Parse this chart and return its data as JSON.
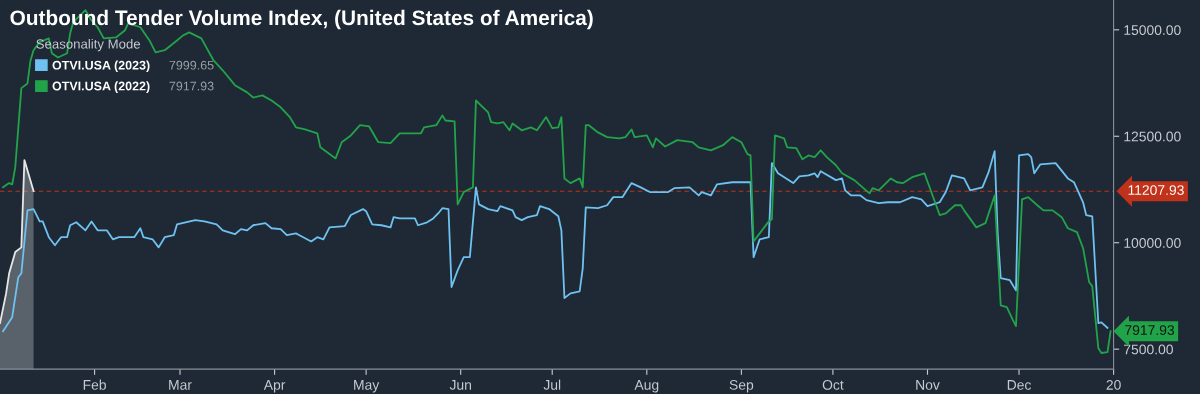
{
  "chart_data": {
    "type": "line",
    "title": "Outbound Tender Volume Index, (United States of America)",
    "legend_title": "Seasonality Mode",
    "legend": "top left",
    "grid": false,
    "xlim": [
      "2023-01-01",
      "2024-01-01"
    ],
    "xticks": [
      {
        "value": "2023-02-01",
        "label": "Feb"
      },
      {
        "value": "2023-03-01",
        "label": "Mar"
      },
      {
        "value": "2023-04-01",
        "label": "Apr"
      },
      {
        "value": "2023-05-01",
        "label": "May"
      },
      {
        "value": "2023-06-01",
        "label": "Jun"
      },
      {
        "value": "2023-07-01",
        "label": "Jul"
      },
      {
        "value": "2023-08-01",
        "label": "Aug"
      },
      {
        "value": "2023-09-01",
        "label": "Sep"
      },
      {
        "value": "2023-10-01",
        "label": "Oct"
      },
      {
        "value": "2023-11-01",
        "label": "Nov"
      },
      {
        "value": "2023-12-01",
        "label": "Dec"
      },
      {
        "value": "2024-01-01",
        "label": "20"
      }
    ],
    "ylim": [
      7030,
      15700
    ],
    "yticks": [
      {
        "value": 7500,
        "label": "7500.00"
      },
      {
        "value": 10000,
        "label": "10000.00"
      },
      {
        "value": 12500,
        "label": "12500.00"
      },
      {
        "value": 15000,
        "label": "15000.00"
      }
    ],
    "series": [
      {
        "name": "OTVI.USA (2023)",
        "color": "#6ec1f0",
        "x": [
          "2023-01-02",
          "2023-01-05",
          "2023-01-07",
          "2023-01-08",
          "2023-01-10",
          "2023-01-12",
          "2023-01-14",
          "2023-01-15",
          "2023-01-17",
          "2023-01-19",
          "2023-01-21",
          "2023-01-23",
          "2023-01-24",
          "2023-01-26",
          "2023-01-29",
          "2023-01-31",
          "2023-02-02",
          "2023-02-05",
          "2023-02-07",
          "2023-02-09",
          "2023-02-14",
          "2023-02-16",
          "2023-02-17",
          "2023-02-20",
          "2023-02-22",
          "2023-02-24",
          "2023-02-27",
          "2023-02-28",
          "2023-03-06",
          "2023-03-09",
          "2023-03-13",
          "2023-03-15",
          "2023-03-19",
          "2023-03-21",
          "2023-03-23",
          "2023-03-25",
          "2023-03-29",
          "2023-03-31",
          "2023-04-03",
          "2023-04-05",
          "2023-04-08",
          "2023-04-09",
          "2023-04-13",
          "2023-04-15",
          "2023-04-17",
          "2023-04-19",
          "2023-04-24",
          "2023-04-26",
          "2023-04-30",
          "2023-05-01",
          "2023-05-03",
          "2023-05-06",
          "2023-05-09",
          "2023-05-10",
          "2023-05-12",
          "2023-05-17",
          "2023-05-18",
          "2023-05-21",
          "2023-05-23",
          "2023-05-25",
          "2023-05-26",
          "2023-05-28",
          "2023-05-29",
          "2023-05-31",
          "2023-06-02",
          "2023-06-04",
          "2023-06-06",
          "2023-06-07",
          "2023-06-10",
          "2023-06-13",
          "2023-06-14",
          "2023-06-18",
          "2023-06-19",
          "2023-06-21",
          "2023-06-23",
          "2023-06-26",
          "2023-06-27",
          "2023-06-30",
          "2023-07-03",
          "2023-07-04",
          "2023-07-05",
          "2023-07-07",
          "2023-07-10",
          "2023-07-11",
          "2023-07-12",
          "2023-07-16",
          "2023-07-19",
          "2023-07-21",
          "2023-07-24",
          "2023-07-27",
          "2023-07-30",
          "2023-08-02",
          "2023-08-08",
          "2023-08-10",
          "2023-08-15",
          "2023-08-18",
          "2023-08-19",
          "2023-08-22",
          "2023-08-24",
          "2023-08-29",
          "2023-09-04",
          "2023-09-05",
          "2023-09-07",
          "2023-09-10",
          "2023-09-11",
          "2023-09-13",
          "2023-09-18",
          "2023-09-20",
          "2023-09-23",
          "2023-09-25",
          "2023-09-26",
          "2023-09-27",
          "2023-10-02",
          "2023-10-04",
          "2023-10-05",
          "2023-10-07",
          "2023-10-10",
          "2023-10-12",
          "2023-10-16",
          "2023-10-19",
          "2023-10-23",
          "2023-10-27",
          "2023-10-30",
          "2023-11-01",
          "2023-11-05",
          "2023-11-07",
          "2023-11-09",
          "2023-11-13",
          "2023-11-15",
          "2023-11-19",
          "2023-11-21",
          "2023-11-23",
          "2023-11-24",
          "2023-11-25",
          "2023-11-28",
          "2023-11-30",
          "2023-12-01",
          "2023-12-04",
          "2023-12-05",
          "2023-12-06",
          "2023-12-08",
          "2023-12-13",
          "2023-12-17",
          "2023-12-19",
          "2023-12-22",
          "2023-12-23",
          "2023-12-25",
          "2023-12-27",
          "2023-12-28",
          "2023-12-30"
        ],
        "values": [
          7920,
          8250,
          9190,
          9280,
          10760,
          10790,
          10500,
          10500,
          10130,
          9940,
          10130,
          10130,
          10410,
          10480,
          10290,
          10500,
          10290,
          10290,
          10080,
          10130,
          10130,
          10340,
          10130,
          10080,
          9890,
          10130,
          10180,
          10430,
          10530,
          10500,
          10430,
          10290,
          10200,
          10320,
          10290,
          10410,
          10460,
          10340,
          10320,
          10180,
          10220,
          10180,
          10030,
          10130,
          10080,
          10360,
          10390,
          10650,
          10790,
          10740,
          10430,
          10410,
          10360,
          10600,
          10570,
          10570,
          10410,
          10480,
          10570,
          10720,
          10810,
          10790,
          8960,
          9350,
          9660,
          9660,
          11300,
          10900,
          10790,
          10740,
          10860,
          10760,
          10600,
          10530,
          10600,
          10650,
          10860,
          10790,
          10620,
          10290,
          8700,
          8810,
          8860,
          9400,
          10830,
          10810,
          10880,
          11070,
          11070,
          11400,
          11300,
          11190,
          11190,
          11280,
          11300,
          11110,
          11190,
          11110,
          11370,
          11420,
          11420,
          9660,
          10080,
          10130,
          11870,
          11630,
          11400,
          11560,
          11580,
          11630,
          11540,
          11680,
          11470,
          11510,
          11230,
          11110,
          11110,
          11000,
          10930,
          10950,
          10950,
          11070,
          11020,
          10860,
          10950,
          11190,
          11580,
          11510,
          11230,
          11300,
          11650,
          12150,
          10220,
          9170,
          9120,
          8880,
          12050,
          12080,
          12010,
          11630,
          11840,
          11870,
          11510,
          11420,
          10950,
          10650,
          10620,
          8110,
          8130,
          8000
        ]
      },
      {
        "name": "OTVI.USA (2022)",
        "color": "#22a34a",
        "x": [
          "2023-01-02",
          "2023-01-04",
          "2023-01-05",
          "2023-01-06",
          "2023-01-08",
          "2023-01-10",
          "2023-01-11",
          "2023-01-12",
          "2023-01-14",
          "2023-01-17",
          "2023-01-18",
          "2023-01-20",
          "2023-01-23",
          "2023-01-24",
          "2023-01-25",
          "2023-01-29",
          "2023-01-31",
          "2023-02-02",
          "2023-02-04",
          "2023-02-08",
          "2023-02-11",
          "2023-02-12",
          "2023-02-16",
          "2023-02-19",
          "2023-02-21",
          "2023-02-24",
          "2023-02-28",
          "2023-03-02",
          "2023-03-04",
          "2023-03-08",
          "2023-03-12",
          "2023-03-15",
          "2023-03-19",
          "2023-03-23",
          "2023-03-25",
          "2023-03-28",
          "2023-03-31",
          "2023-04-03",
          "2023-04-06",
          "2023-04-08",
          "2023-04-11",
          "2023-04-15",
          "2023-04-16",
          "2023-04-21",
          "2023-04-23",
          "2023-04-26",
          "2023-04-29",
          "2023-05-02",
          "2023-05-05",
          "2023-05-09",
          "2023-05-12",
          "2023-05-19",
          "2023-05-20",
          "2023-05-24",
          "2023-05-26",
          "2023-05-27",
          "2023-05-30",
          "2023-05-31",
          "2023-06-02",
          "2023-06-05",
          "2023-06-06",
          "2023-06-10",
          "2023-06-11",
          "2023-06-13",
          "2023-06-15",
          "2023-06-17",
          "2023-06-18",
          "2023-06-21",
          "2023-06-24",
          "2023-06-26",
          "2023-06-29",
          "2023-07-01",
          "2023-07-03",
          "2023-07-04",
          "2023-07-05",
          "2023-07-07",
          "2023-07-10",
          "2023-07-11",
          "2023-07-12",
          "2023-07-13",
          "2023-07-16",
          "2023-07-19",
          "2023-07-23",
          "2023-07-25",
          "2023-07-27",
          "2023-07-28",
          "2023-08-01",
          "2023-08-03",
          "2023-08-04",
          "2023-08-07",
          "2023-08-11",
          "2023-08-16",
          "2023-08-18",
          "2023-08-22",
          "2023-08-26",
          "2023-08-29",
          "2023-09-01",
          "2023-09-03",
          "2023-09-04",
          "2023-09-05",
          "2023-09-07",
          "2023-09-10",
          "2023-09-11",
          "2023-09-12",
          "2023-09-15",
          "2023-09-16",
          "2023-09-19",
          "2023-09-21",
          "2023-09-23",
          "2023-09-25",
          "2023-09-27",
          "2023-09-29",
          "2023-10-02",
          "2023-10-04",
          "2023-10-08",
          "2023-10-13",
          "2023-10-14",
          "2023-10-16",
          "2023-10-20",
          "2023-10-22",
          "2023-10-24",
          "2023-10-27",
          "2023-10-31",
          "2023-11-05",
          "2023-11-07",
          "2023-11-10",
          "2023-11-12",
          "2023-11-13",
          "2023-11-17",
          "2023-11-20",
          "2023-11-23",
          "2023-11-25",
          "2023-11-27",
          "2023-11-29",
          "2023-11-30",
          "2023-12-02",
          "2023-12-04",
          "2023-12-07",
          "2023-12-09",
          "2023-12-12",
          "2023-12-15",
          "2023-12-17",
          "2023-12-20",
          "2023-12-22",
          "2023-12-24",
          "2023-12-25",
          "2023-12-27",
          "2023-12-28",
          "2023-12-30",
          "2023-12-31"
        ],
        "values": [
          11300,
          11400,
          11370,
          11770,
          13630,
          13740,
          14280,
          14520,
          14710,
          14800,
          14450,
          14350,
          14450,
          14920,
          15180,
          15460,
          15220,
          15060,
          14800,
          14820,
          14990,
          15150,
          15060,
          14750,
          14470,
          14520,
          14750,
          14870,
          14940,
          14800,
          14280,
          14050,
          13700,
          13530,
          13410,
          13460,
          13340,
          13180,
          12950,
          12710,
          12660,
          12570,
          12240,
          11980,
          12360,
          12520,
          12760,
          12730,
          12360,
          12340,
          12570,
          12570,
          12710,
          12760,
          12990,
          12870,
          12850,
          10900,
          11190,
          11300,
          13340,
          13060,
          12830,
          12800,
          12830,
          12640,
          12800,
          12640,
          12710,
          12640,
          12950,
          12690,
          12710,
          12950,
          11510,
          11400,
          11510,
          11300,
          12760,
          12760,
          12590,
          12480,
          12450,
          12480,
          12660,
          12480,
          12520,
          12240,
          12450,
          12260,
          12410,
          12360,
          12240,
          12170,
          12290,
          12480,
          12360,
          12080,
          12050,
          10030,
          10220,
          10500,
          10550,
          12520,
          12450,
          12240,
          12220,
          11960,
          12050,
          12010,
          12170,
          12010,
          11820,
          11630,
          11470,
          11160,
          11280,
          11230,
          11510,
          11420,
          11400,
          11540,
          11630,
          10650,
          10690,
          10880,
          10880,
          10760,
          10360,
          10460,
          11110,
          8530,
          8490,
          8180,
          8040,
          11020,
          11070,
          10880,
          10760,
          10760,
          10600,
          10340,
          10250,
          9870,
          9070,
          8980,
          7520,
          7410,
          7430,
          7920
        ]
      },
      {
        "type": "area",
        "color": "#e6e6e6",
        "x": [
          "2023-01-01",
          "2023-01-03",
          "2023-01-04",
          "2023-01-06",
          "2023-01-08",
          "2023-01-09",
          "2023-01-12"
        ],
        "values": [
          8110,
          8810,
          9280,
          9780,
          9890,
          11940,
          11210
        ]
      }
    ],
    "ref_lines": [
      {
        "axis": "y",
        "value": 11207.93,
        "label": "11207.93",
        "color": "#c0321a",
        "line_style": "dashed"
      }
    ],
    "annotations": [
      "7999.65",
      "7917.93",
      {
        "text": "7917.93",
        "x": "2023-12-31",
        "y": 7920
      }
    ]
  }
}
